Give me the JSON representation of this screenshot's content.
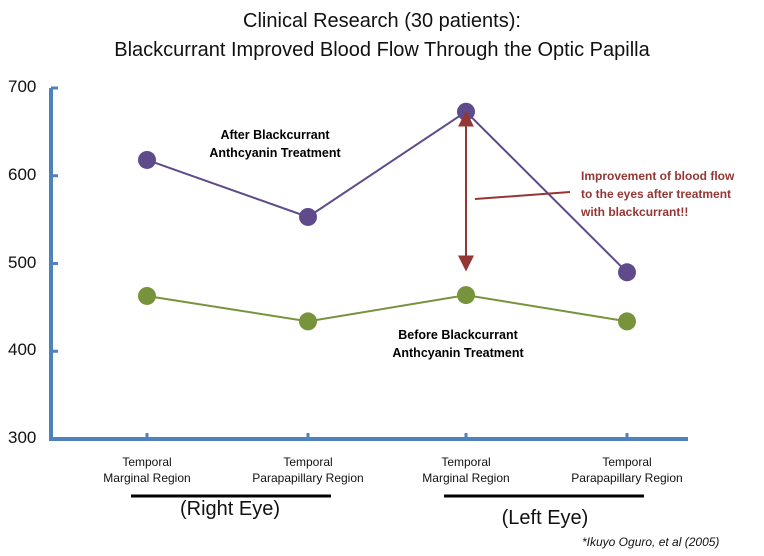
{
  "chart_data": {
    "type": "line",
    "title": "Clinical Research (30 patients):",
    "subtitle": "Blackcurrant Improved Blood Flow Through the Optic Papilla",
    "categories": [
      [
        "Temporal",
        "Marginal Region"
      ],
      [
        "Temporal",
        "Parapapillary Region"
      ],
      [
        "Temporal",
        "Marginal Region"
      ],
      [
        "Temporal",
        "Parapapillary Region"
      ]
    ],
    "groups": [
      {
        "label": "(Right Eye)",
        "categories": [
          0,
          1
        ]
      },
      {
        "label": "(Left Eye)",
        "categories": [
          2,
          3
        ]
      }
    ],
    "series": [
      {
        "name": "After Blackcurrant Anthcyanin Treatment",
        "label_lines": [
          "After Blackcurrant",
          "Anthcyanin Treatment"
        ],
        "color": "#5f4b8b",
        "values": [
          618,
          553,
          673,
          490
        ]
      },
      {
        "name": "Before Blackcurrant Anthcyanin Treatment",
        "label_lines": [
          "Before Blackcurrant",
          "Anthcyanin Treatment"
        ],
        "color": "#77933c",
        "values": [
          463,
          434,
          464,
          434
        ]
      }
    ],
    "ylim": [
      300,
      700
    ],
    "yticks": [
      300,
      400,
      500,
      600,
      700
    ],
    "xlabel": "",
    "ylabel": "",
    "grid": false,
    "annotation": {
      "lines": [
        "Improvement of blood flow",
        "to the eyes after treatment",
        "with blackcurrant!!"
      ],
      "color": "#943634",
      "arrow_category": 2,
      "arrow_range": [
        500,
        665
      ]
    },
    "source": "*Ikuyo Oguro, et al (2005)",
    "axis_color": "#4f81bd"
  }
}
